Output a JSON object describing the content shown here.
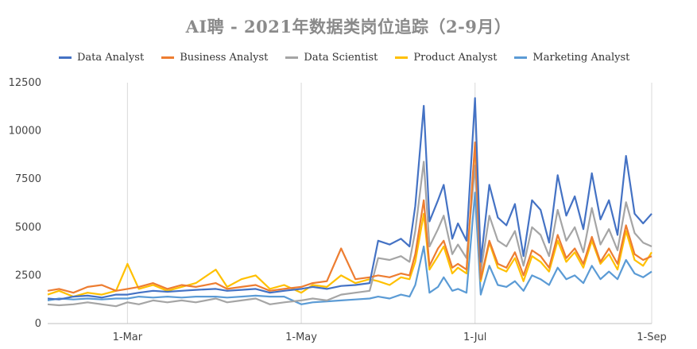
{
  "chart_data": {
    "type": "line",
    "title": "AI聘 - 2021年数据类岗位追踪（2-9月）",
    "x_ticks": [
      "1-Mar",
      "1-May",
      "1-Jul",
      "1-Sep"
    ],
    "y_ticks": [
      "0",
      "2500",
      "5000",
      "7500",
      "10000",
      "12500"
    ],
    "ylim": [
      0,
      12500
    ],
    "grid": "vertical",
    "legend": "top",
    "series": [
      {
        "name": "Data Analyst",
        "color": "#4472C4",
        "dates": [
          "2021-02-01",
          "2021-02-05",
          "2021-02-10",
          "2021-02-15",
          "2021-02-20",
          "2021-02-25",
          "2021-03-01",
          "2021-03-05",
          "2021-03-10",
          "2021-03-15",
          "2021-03-20",
          "2021-03-25",
          "2021-04-01",
          "2021-04-05",
          "2021-04-10",
          "2021-04-15",
          "2021-04-20",
          "2021-04-25",
          "2021-05-01",
          "2021-05-05",
          "2021-05-10",
          "2021-05-15",
          "2021-05-20",
          "2021-05-25",
          "2021-05-28",
          "2021-06-01",
          "2021-06-05",
          "2021-06-08",
          "2021-06-10",
          "2021-06-13",
          "2021-06-15",
          "2021-06-18",
          "2021-06-20",
          "2021-06-23",
          "2021-06-25",
          "2021-06-28",
          "2021-07-01",
          "2021-07-03",
          "2021-07-06",
          "2021-07-09",
          "2021-07-12",
          "2021-07-15",
          "2021-07-18",
          "2021-07-21",
          "2021-07-24",
          "2021-07-27",
          "2021-07-30",
          "2021-08-02",
          "2021-08-05",
          "2021-08-08",
          "2021-08-11",
          "2021-08-14",
          "2021-08-17",
          "2021-08-20",
          "2021-08-23",
          "2021-08-26",
          "2021-08-29",
          "2021-09-01"
        ],
        "values": [
          1300,
          1250,
          1400,
          1450,
          1350,
          1500,
          1500,
          1600,
          1700,
          1650,
          1700,
          1750,
          1800,
          1700,
          1750,
          1800,
          1600,
          1700,
          1800,
          1900,
          1800,
          1950,
          2000,
          2100,
          4300,
          4100,
          4400,
          4000,
          6100,
          11300,
          5300,
          6400,
          7200,
          4400,
          5200,
          4300,
          11700,
          3200,
          7200,
          5500,
          5100,
          6200,
          3500,
          6400,
          5900,
          4200,
          7700,
          5600,
          6600,
          4900,
          7800,
          5400,
          6400,
          4600,
          8700,
          5700,
          5200,
          5700
        ]
      },
      {
        "name": "Business Analyst",
        "color": "#ED7D31",
        "dates": [
          "2021-02-01",
          "2021-02-05",
          "2021-02-10",
          "2021-02-15",
          "2021-02-20",
          "2021-02-25",
          "2021-03-01",
          "2021-03-05",
          "2021-03-10",
          "2021-03-15",
          "2021-03-20",
          "2021-03-25",
          "2021-04-01",
          "2021-04-05",
          "2021-04-10",
          "2021-04-15",
          "2021-04-20",
          "2021-04-25",
          "2021-05-01",
          "2021-05-05",
          "2021-05-10",
          "2021-05-15",
          "2021-05-20",
          "2021-05-25",
          "2021-05-28",
          "2021-06-01",
          "2021-06-05",
          "2021-06-08",
          "2021-06-10",
          "2021-06-13",
          "2021-06-15",
          "2021-06-18",
          "2021-06-20",
          "2021-06-23",
          "2021-06-25",
          "2021-06-28",
          "2021-07-01",
          "2021-07-03",
          "2021-07-06",
          "2021-07-09",
          "2021-07-12",
          "2021-07-15",
          "2021-07-18",
          "2021-07-21",
          "2021-07-24",
          "2021-07-27",
          "2021-07-30",
          "2021-08-02",
          "2021-08-05",
          "2021-08-08",
          "2021-08-11",
          "2021-08-14",
          "2021-08-17",
          "2021-08-20",
          "2021-08-23",
          "2021-08-26",
          "2021-08-29",
          "2021-09-01"
        ],
        "values": [
          1700,
          1800,
          1600,
          1900,
          2000,
          1700,
          1800,
          1900,
          2100,
          1800,
          2000,
          1900,
          2100,
          1800,
          1900,
          2000,
          1700,
          1800,
          1900,
          2100,
          2200,
          3900,
          2300,
          2400,
          2500,
          2400,
          2600,
          2500,
          3600,
          6400,
          3000,
          3900,
          4300,
          2900,
          3100,
          2800,
          9400,
          2300,
          4300,
          3100,
          2900,
          3700,
          2500,
          3800,
          3500,
          2900,
          4600,
          3400,
          3900,
          3100,
          4500,
          3200,
          3900,
          3100,
          5100,
          3600,
          3300,
          3500
        ]
      },
      {
        "name": "Data Scientist",
        "color": "#A5A5A5",
        "dates": [
          "2021-02-01",
          "2021-02-05",
          "2021-02-10",
          "2021-02-15",
          "2021-02-20",
          "2021-02-25",
          "2021-03-01",
          "2021-03-05",
          "2021-03-10",
          "2021-03-15",
          "2021-03-20",
          "2021-03-25",
          "2021-04-01",
          "2021-04-05",
          "2021-04-10",
          "2021-04-15",
          "2021-04-20",
          "2021-04-25",
          "2021-05-01",
          "2021-05-05",
          "2021-05-10",
          "2021-05-15",
          "2021-05-20",
          "2021-05-25",
          "2021-05-28",
          "2021-06-01",
          "2021-06-05",
          "2021-06-08",
          "2021-06-10",
          "2021-06-13",
          "2021-06-15",
          "2021-06-18",
          "2021-06-20",
          "2021-06-23",
          "2021-06-25",
          "2021-06-28",
          "2021-07-01",
          "2021-07-03",
          "2021-07-06",
          "2021-07-09",
          "2021-07-12",
          "2021-07-15",
          "2021-07-18",
          "2021-07-21",
          "2021-07-24",
          "2021-07-27",
          "2021-07-30",
          "2021-08-02",
          "2021-08-05",
          "2021-08-08",
          "2021-08-11",
          "2021-08-14",
          "2021-08-17",
          "2021-08-20",
          "2021-08-23",
          "2021-08-26",
          "2021-08-29",
          "2021-09-01"
        ],
        "values": [
          1000,
          950,
          1000,
          1100,
          1000,
          900,
          1100,
          1000,
          1200,
          1100,
          1200,
          1100,
          1300,
          1100,
          1200,
          1300,
          1000,
          1100,
          1200,
          1300,
          1200,
          1500,
          1600,
          1700,
          3400,
          3300,
          3500,
          3200,
          4800,
          8400,
          4000,
          4900,
          5600,
          3600,
          4100,
          3400,
          8200,
          2700,
          5600,
          4300,
          4000,
          4800,
          3000,
          5000,
          4600,
          3500,
          5900,
          4300,
          5000,
          3700,
          6000,
          4100,
          4900,
          3800,
          6300,
          4700,
          4200,
          4000
        ]
      },
      {
        "name": "Product Analyst",
        "color": "#FFC000",
        "dates": [
          "2021-02-01",
          "2021-02-05",
          "2021-02-10",
          "2021-02-15",
          "2021-02-20",
          "2021-02-25",
          "2021-03-01",
          "2021-03-05",
          "2021-03-10",
          "2021-03-15",
          "2021-03-20",
          "2021-03-25",
          "2021-04-01",
          "2021-04-05",
          "2021-04-10",
          "2021-04-15",
          "2021-04-20",
          "2021-04-25",
          "2021-05-01",
          "2021-05-05",
          "2021-05-10",
          "2021-05-15",
          "2021-05-20",
          "2021-05-25",
          "2021-05-28",
          "2021-06-01",
          "2021-06-05",
          "2021-06-08",
          "2021-06-10",
          "2021-06-13",
          "2021-06-15",
          "2021-06-18",
          "2021-06-20",
          "2021-06-23",
          "2021-06-25",
          "2021-06-28",
          "2021-07-01",
          "2021-07-03",
          "2021-07-06",
          "2021-07-09",
          "2021-07-12",
          "2021-07-15",
          "2021-07-18",
          "2021-07-21",
          "2021-07-24",
          "2021-07-27",
          "2021-07-30",
          "2021-08-02",
          "2021-08-05",
          "2021-08-08",
          "2021-08-11",
          "2021-08-14",
          "2021-08-17",
          "2021-08-20",
          "2021-08-23",
          "2021-08-26",
          "2021-08-29",
          "2021-09-01"
        ],
        "values": [
          1500,
          1700,
          1400,
          1600,
          1500,
          1700,
          3100,
          1800,
          2000,
          1700,
          1900,
          2100,
          2800,
          1900,
          2300,
          2500,
          1800,
          2000,
          1600,
          2000,
          1900,
          2500,
          2100,
          2300,
          2200,
          2000,
          2400,
          2300,
          3200,
          5700,
          2800,
          3500,
          4000,
          2600,
          2900,
          2600,
          9300,
          2200,
          4200,
          2900,
          2700,
          3400,
          2200,
          3500,
          3200,
          2700,
          4300,
          3200,
          3700,
          2900,
          4300,
          3100,
          3600,
          2800,
          4800,
          3300,
          3000,
          3700
        ]
      },
      {
        "name": "Marketing Analyst",
        "color": "#5B9BD5",
        "dates": [
          "2021-02-01",
          "2021-02-05",
          "2021-02-10",
          "2021-02-15",
          "2021-02-20",
          "2021-02-25",
          "2021-03-01",
          "2021-03-05",
          "2021-03-10",
          "2021-03-15",
          "2021-03-20",
          "2021-03-25",
          "2021-04-01",
          "2021-04-05",
          "2021-04-10",
          "2021-04-15",
          "2021-04-20",
          "2021-04-25",
          "2021-05-01",
          "2021-05-05",
          "2021-05-10",
          "2021-05-15",
          "2021-05-20",
          "2021-05-25",
          "2021-05-28",
          "2021-06-01",
          "2021-06-05",
          "2021-06-08",
          "2021-06-10",
          "2021-06-13",
          "2021-06-15",
          "2021-06-18",
          "2021-06-20",
          "2021-06-23",
          "2021-06-25",
          "2021-06-28",
          "2021-07-01",
          "2021-07-03",
          "2021-07-06",
          "2021-07-09",
          "2021-07-12",
          "2021-07-15",
          "2021-07-18",
          "2021-07-21",
          "2021-07-24",
          "2021-07-27",
          "2021-07-30",
          "2021-08-02",
          "2021-08-05",
          "2021-08-08",
          "2021-08-11",
          "2021-08-14",
          "2021-08-17",
          "2021-08-20",
          "2021-08-23",
          "2021-08-26",
          "2021-08-29",
          "2021-09-01"
        ],
        "values": [
          1200,
          1300,
          1250,
          1300,
          1250,
          1300,
          1300,
          1400,
          1350,
          1400,
          1350,
          1400,
          1400,
          1350,
          1400,
          1450,
          1400,
          1400,
          1000,
          1100,
          1150,
          1200,
          1250,
          1300,
          1400,
          1300,
          1500,
          1400,
          2000,
          4000,
          1600,
          1900,
          2400,
          1700,
          1800,
          1600,
          6800,
          1500,
          3000,
          2000,
          1900,
          2200,
          1700,
          2500,
          2300,
          2000,
          2900,
          2300,
          2500,
          2100,
          3000,
          2300,
          2700,
          2300,
          3300,
          2600,
          2400,
          2700
        ]
      }
    ]
  }
}
